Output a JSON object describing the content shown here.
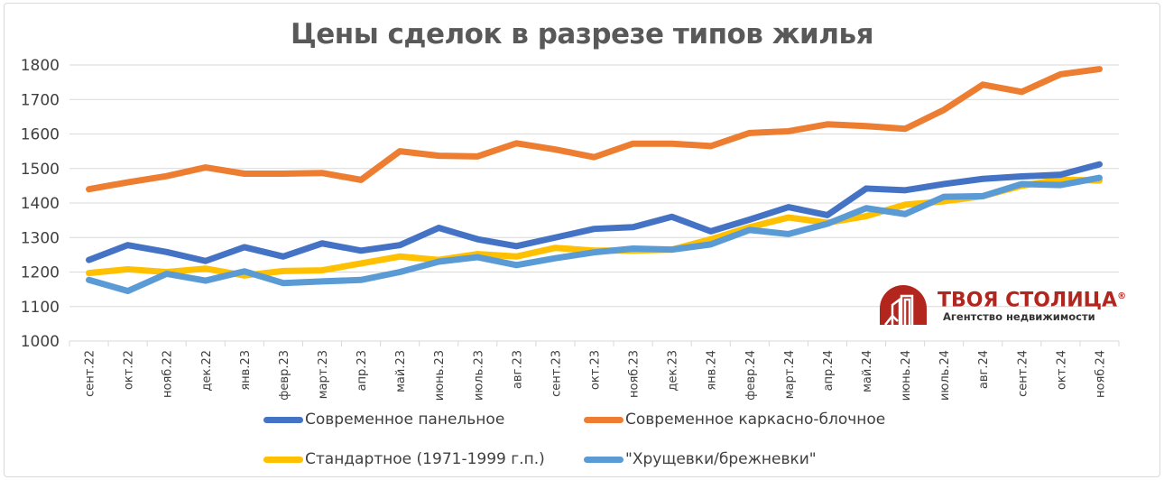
{
  "chart_data": {
    "type": "line",
    "title": "Цены сделок в разрезе типов жилья",
    "xlabel": "",
    "ylabel": "",
    "ylim": [
      1000,
      1800
    ],
    "yticks": [
      1000,
      1100,
      1200,
      1300,
      1400,
      1500,
      1600,
      1700,
      1800
    ],
    "grid": true,
    "legend_placement": "bottom",
    "categories": [
      "сент.22",
      "окт.22",
      "нояб.22",
      "дек.22",
      "янв.23",
      "февр.23",
      "март.23",
      "апр.23",
      "май.23",
      "июнь.23",
      "июль.23",
      "авг.23",
      "сент.23",
      "окт.23",
      "нояб.23",
      "дек.23",
      "янв.24",
      "февр.24",
      "март.24",
      "апр.24",
      "май.24",
      "июнь.24",
      "июль.24",
      "авг.24",
      "сент.24",
      "окт.24",
      "нояб.24"
    ],
    "series": [
      {
        "name": "Современное каркасно-блочное",
        "color": "#ed7d31",
        "values": [
          1440,
          1460,
          1478,
          1503,
          1485,
          1485,
          1487,
          1467,
          1550,
          1537,
          1535,
          1573,
          1555,
          1533,
          1572,
          1572,
          1565,
          1603,
          1608,
          1628,
          1623,
          1615,
          1670,
          1743,
          1722,
          1773,
          1788
        ]
      },
      {
        "name": "Стандартное (1971-1999 г.п.)",
        "color": "#ffc000",
        "values": [
          1197,
          1208,
          1200,
          1210,
          1190,
          1203,
          1205,
          1225,
          1245,
          1235,
          1252,
          1245,
          1270,
          1262,
          1262,
          1265,
          1295,
          1330,
          1358,
          1343,
          1362,
          1395,
          1405,
          1420,
          1450,
          1468,
          1465
        ]
      },
      {
        "name": "\"Хрущевки/брежневки\"",
        "color": "#5b9bd5",
        "values": [
          1177,
          1145,
          1195,
          1175,
          1202,
          1168,
          1173,
          1177,
          1200,
          1230,
          1243,
          1220,
          1240,
          1257,
          1268,
          1265,
          1280,
          1322,
          1310,
          1340,
          1385,
          1368,
          1418,
          1420,
          1455,
          1452,
          1473
        ]
      },
      {
        "name": "Современное панельное",
        "color": "#4472c4",
        "values": [
          1235,
          1278,
          1258,
          1232,
          1272,
          1245,
          1283,
          1262,
          1278,
          1328,
          1295,
          1275,
          1300,
          1325,
          1330,
          1360,
          1318,
          1352,
          1388,
          1365,
          1442,
          1437,
          1455,
          1470,
          1477,
          1482,
          1512
        ]
      }
    ],
    "legend": [
      "Современное панельное",
      "Современное каркасно-блочное",
      "Стандартное (1971-1999 г.п.)",
      "\"Хрущевки/брежневки\""
    ]
  },
  "logo": {
    "name": "ТВОЯ СТОЛИЦА",
    "registered": "®",
    "tagline": "Агентство недвижимости",
    "color": "#b3261e"
  }
}
